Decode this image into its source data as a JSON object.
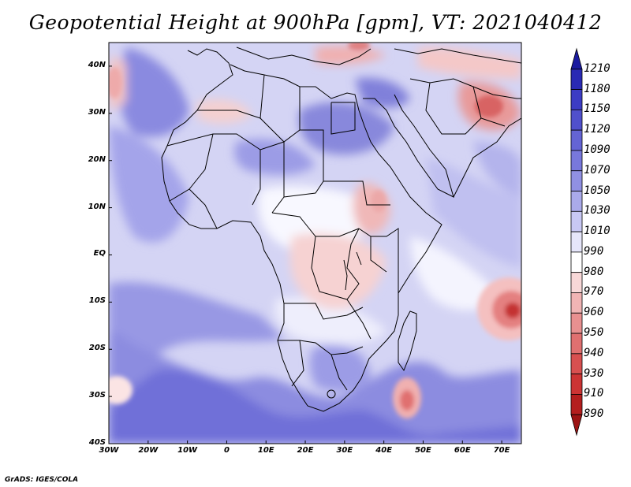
{
  "title": "Geopotential Height at 900hPa [gpm], VT: 2021040412",
  "credit": "GrADS: IGES/COLA",
  "map": {
    "lat_labels": [
      "40N",
      "30N",
      "20N",
      "10N",
      "EQ",
      "10S",
      "20S",
      "30S",
      "40S"
    ],
    "lon_labels": [
      "30W",
      "20W",
      "10W",
      "0",
      "10E",
      "20E",
      "30E",
      "40E",
      "50E",
      "60E",
      "70E"
    ],
    "lon_range": [
      -30,
      75
    ],
    "lat_range": [
      -40,
      45
    ]
  },
  "colorbar": {
    "labels": [
      "1210",
      "1180",
      "1150",
      "1120",
      "1090",
      "1070",
      "1050",
      "1030",
      "1010",
      "990",
      "980",
      "970",
      "960",
      "950",
      "940",
      "930",
      "910",
      "890"
    ],
    "colors": [
      "#1a1aa0",
      "#2a2ab4",
      "#3c3cc4",
      "#5050cc",
      "#6464d4",
      "#7878dc",
      "#9090e2",
      "#aaaaea",
      "#c8c8f4",
      "#e6e6fa",
      "#ffffff",
      "#f8d8d8",
      "#f0b4b4",
      "#e89090",
      "#e07070",
      "#d85050",
      "#cc3434",
      "#b41e1e",
      "#9c1414"
    ]
  }
}
